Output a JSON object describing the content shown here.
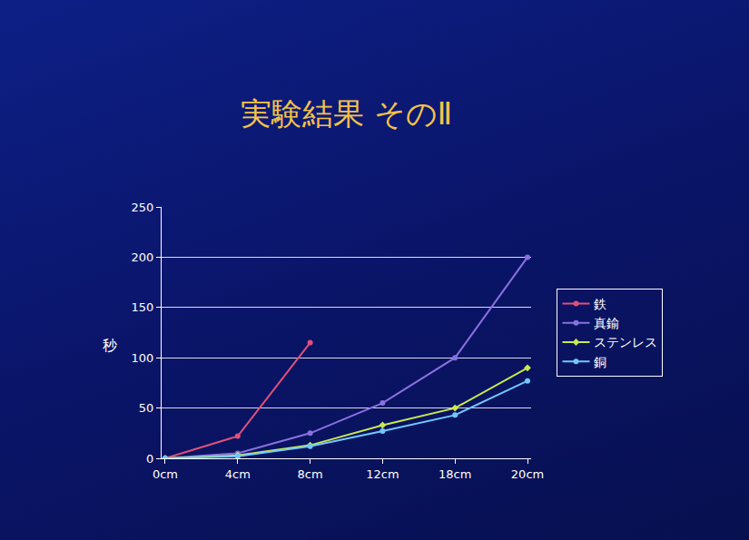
{
  "chart_data": {
    "type": "line",
    "title": "実験結果 そのⅡ",
    "y_label": "秒",
    "categories": [
      "0cm",
      "4cm",
      "8cm",
      "12cm",
      "18cm",
      "20cm"
    ],
    "series": [
      {
        "name": "鉄",
        "color": "#e0507a",
        "marker": "circle",
        "values": [
          0,
          22,
          115,
          null,
          null,
          null
        ]
      },
      {
        "name": "真鍮",
        "color": "#8a70e0",
        "marker": "circle",
        "values": [
          0,
          5,
          25,
          55,
          100,
          200
        ]
      },
      {
        "name": "ステンレス",
        "color": "#c8e850",
        "marker": "diamond",
        "values": [
          0,
          3,
          13,
          33,
          50,
          90
        ]
      },
      {
        "name": "銅",
        "color": "#70c8ff",
        "marker": "circle",
        "values": [
          0,
          2,
          12,
          27,
          43,
          77
        ]
      }
    ],
    "ylim": [
      0,
      250
    ],
    "yticks": [
      0,
      50,
      100,
      150,
      200,
      250
    ],
    "grid": true,
    "legend": "right"
  }
}
